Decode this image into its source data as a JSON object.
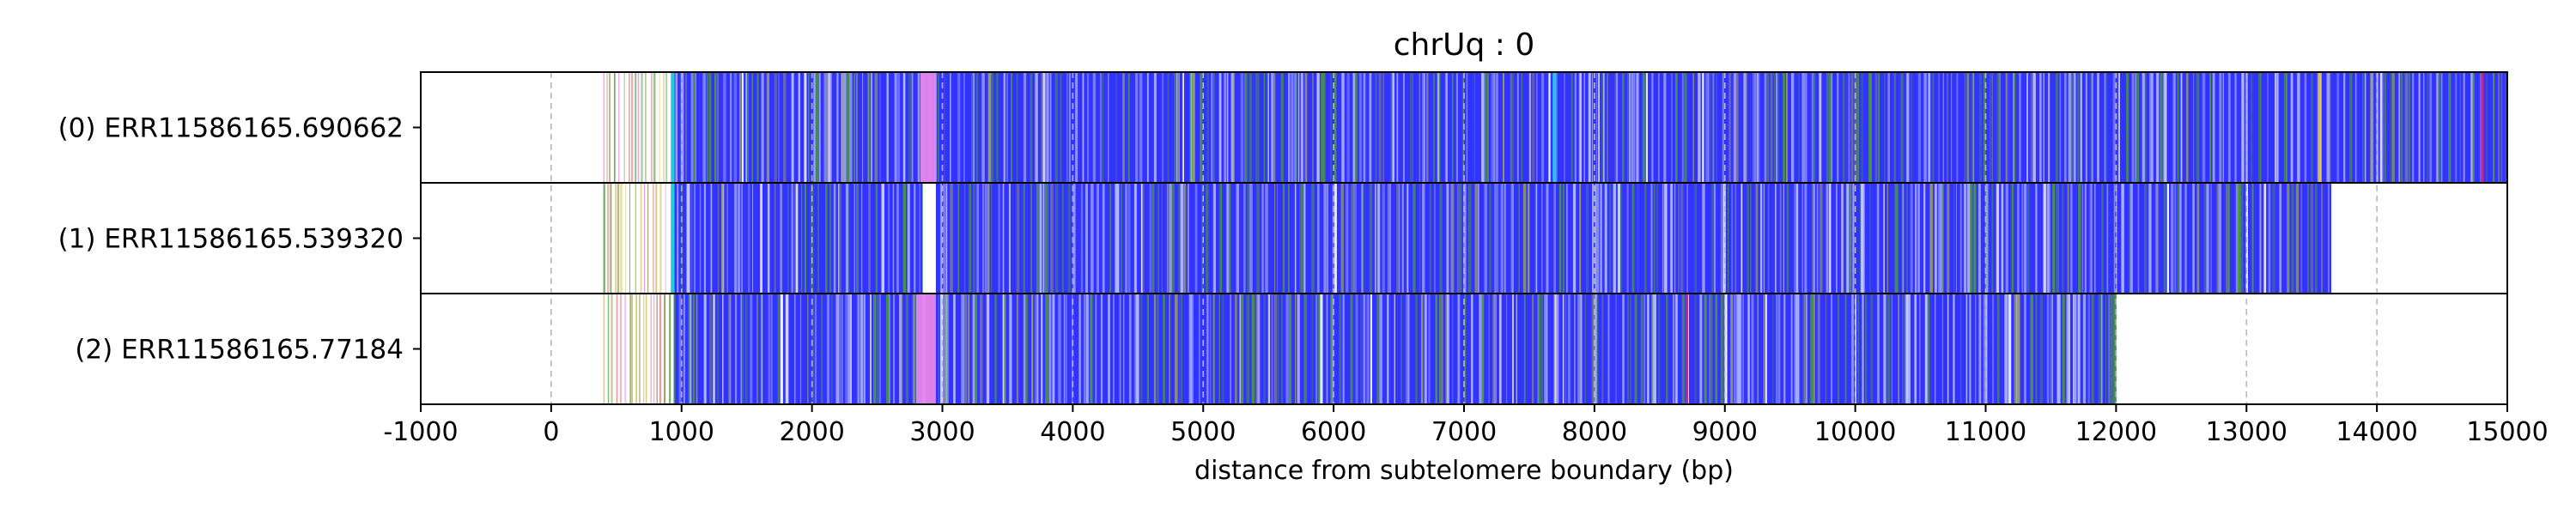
{
  "chart_data": {
    "type": "heatmap",
    "title": "chrUq : 0",
    "xlabel": "distance from subtelomere boundary (bp)",
    "xlim": [
      -1000,
      15000
    ],
    "x_ticks": [
      -1000,
      0,
      1000,
      2000,
      3000,
      4000,
      5000,
      6000,
      7000,
      8000,
      9000,
      10000,
      11000,
      12000,
      13000,
      14000,
      15000
    ],
    "x_tick_labels": [
      "-1000",
      "0",
      "1000",
      "2000",
      "3000",
      "4000",
      "5000",
      "6000",
      "7000",
      "8000",
      "9000",
      "10000",
      "11000",
      "12000",
      "13000",
      "14000",
      "15000"
    ],
    "grid": "vertical dashed",
    "colors": {
      "main_repeat": "#3333ff",
      "variant_green": "#4b9a3c",
      "variant_olive": "#9aa05a",
      "variant_pink": "#ee88ee",
      "variant_cyan": "#22ccdd",
      "variant_light": "#b8c0ff",
      "variant_yellow": "#d8c060",
      "variant_magenta": "#cc2288"
    },
    "series": [
      {
        "name": "(0) ERR11586165.690662",
        "start": 400,
        "end": 15000,
        "dense_start": 920,
        "pink_blocks": [
          [
            2830,
            2950
          ]
        ],
        "green_clusters": [
          [
            2950,
            3150
          ],
          [
            9950,
            10450
          ],
          [
            11000,
            11250
          ],
          [
            14750,
            15000
          ]
        ],
        "cyan_marks": [
          7680,
          920
        ],
        "yellow_marks": [
          13550
        ],
        "magenta_marks": [
          14800
        ]
      },
      {
        "name": "(1) ERR11586165.539320",
        "start": 400,
        "end": 13650,
        "dense_start": 920,
        "pink_blocks": [],
        "green_clusters": [
          [
            1900,
            2100
          ],
          [
            2950,
            3250
          ],
          [
            3600,
            4000
          ],
          [
            4600,
            4900
          ],
          [
            11500,
            11800
          ],
          [
            13300,
            13600
          ]
        ],
        "white_gaps": [
          [
            2850,
            2950
          ]
        ],
        "cyan_marks": [
          920
        ],
        "yellow_marks": [],
        "magenta_marks": []
      },
      {
        "name": "(2) ERR11586165.77184",
        "start": 400,
        "end": 12000,
        "dense_start": 940,
        "pink_blocks": [
          [
            2800,
            2950
          ]
        ],
        "green_clusters": [
          [
            3100,
            3300
          ],
          [
            4500,
            4800
          ],
          [
            9600,
            9800
          ]
        ],
        "cyan_marks": [],
        "yellow_marks": [],
        "magenta_marks": [
          8700
        ]
      }
    ]
  }
}
